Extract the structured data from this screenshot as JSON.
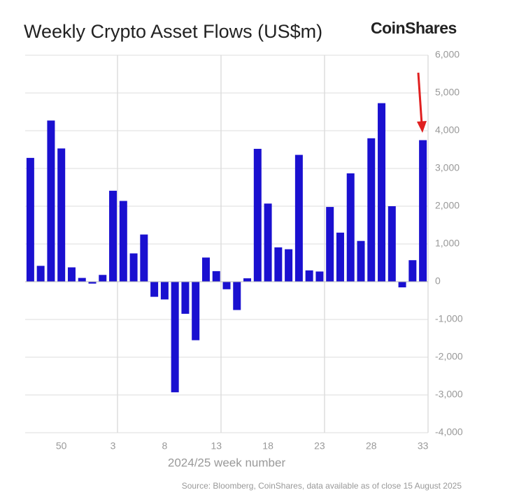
{
  "chart_data": {
    "type": "bar",
    "title": "Weekly Crypto Asset Flows (US$m)",
    "brand": "CoinShares",
    "x_label": "2024/25 week number",
    "source": "Source: Bloomberg, CoinShares, data available as of close 15 August 2025",
    "categories": [
      null,
      null,
      null,
      "50",
      null,
      null,
      null,
      null,
      "3",
      null,
      null,
      null,
      null,
      "8",
      null,
      null,
      null,
      null,
      "13",
      null,
      null,
      null,
      null,
      "18",
      null,
      null,
      null,
      null,
      "23",
      null,
      null,
      null,
      null,
      "28",
      null,
      null,
      null,
      null,
      "33"
    ],
    "values": [
      3280,
      420,
      4270,
      3530,
      380,
      100,
      -50,
      180,
      2410,
      2140,
      750,
      1250,
      -400,
      -470,
      -2930,
      -850,
      -1550,
      640,
      280,
      -200,
      -750,
      90,
      3520,
      2070,
      910,
      860,
      3360,
      300,
      270,
      1980,
      1300,
      2870,
      1080,
      3800,
      4730,
      2000,
      -150,
      570,
      3750
    ],
    "color": "#1a10d0",
    "ylim": [
      -4000,
      6000
    ],
    "yticks": [
      {
        "value": -4000,
        "label": "-4,000"
      },
      {
        "value": -3000,
        "label": "-3,000"
      },
      {
        "value": -2000,
        "label": "-2,000"
      },
      {
        "value": -1000,
        "label": "-1,000"
      },
      0,
      {
        "value": 1000,
        "label": "1,000"
      },
      {
        "value": 2000,
        "label": "2,000"
      },
      {
        "value": 3000,
        "label": "3,000"
      },
      {
        "value": 4000,
        "label": "4,000"
      },
      {
        "value": 5000,
        "label": "5,000"
      },
      {
        "value": 6000,
        "label": "6,000"
      }
    ],
    "grid": true
  }
}
